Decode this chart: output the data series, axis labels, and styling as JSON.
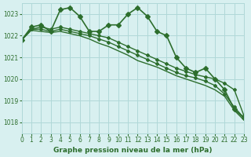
{
  "title": "Graphe pression niveau de la mer (hPa)",
  "bg_color": "#d8f0f0",
  "grid_color": "#b0d8d8",
  "line_color": "#2d6e2d",
  "xlim": [
    0,
    23
  ],
  "ylim": [
    1017.5,
    1023.5
  ],
  "yticks": [
    1018,
    1019,
    1020,
    1021,
    1022,
    1023
  ],
  "xticks": [
    0,
    1,
    2,
    3,
    4,
    5,
    6,
    7,
    8,
    9,
    10,
    11,
    12,
    13,
    14,
    15,
    16,
    17,
    18,
    19,
    20,
    21,
    22,
    23
  ],
  "series1": {
    "x": [
      0,
      1,
      2,
      3,
      4,
      5,
      6,
      7,
      8,
      9,
      10,
      11,
      12,
      13,
      14,
      15,
      16,
      17,
      18,
      19,
      20,
      21,
      22,
      23
    ],
    "y": [
      1021.8,
      1022.4,
      1022.5,
      1022.2,
      1023.2,
      1023.3,
      1022.9,
      1022.2,
      1022.2,
      1022.5,
      1022.5,
      1023.0,
      1023.3,
      1022.9,
      1022.2,
      1022.0,
      1021.0,
      1020.5,
      1020.3,
      1020.5,
      1020.0,
      1019.5,
      1018.6,
      1018.2
    ],
    "marker": "D",
    "markersize": 3,
    "linewidth": 1.2
  },
  "series2": {
    "x": [
      0,
      1,
      2,
      3,
      4,
      5,
      6,
      7,
      8,
      9,
      10,
      11,
      12,
      13,
      14,
      15,
      16,
      17,
      18,
      19,
      20,
      21,
      22,
      23
    ],
    "y": [
      1021.8,
      1022.3,
      1022.4,
      1022.3,
      1022.4,
      1022.3,
      1022.2,
      1022.1,
      1022.0,
      1021.9,
      1021.7,
      1021.5,
      1021.3,
      1021.1,
      1020.9,
      1020.7,
      1020.5,
      1020.35,
      1020.2,
      1020.1,
      1020.0,
      1019.8,
      1019.5,
      1018.3
    ],
    "marker": "D",
    "markersize": 2,
    "linewidth": 1.0
  },
  "series3": {
    "x": [
      0,
      1,
      2,
      3,
      4,
      5,
      6,
      7,
      8,
      9,
      10,
      11,
      12,
      13,
      14,
      15,
      16,
      17,
      18,
      19,
      20,
      21,
      22,
      23
    ],
    "y": [
      1021.8,
      1022.3,
      1022.3,
      1022.2,
      1022.3,
      1022.2,
      1022.1,
      1022.0,
      1021.85,
      1021.7,
      1021.5,
      1021.3,
      1021.1,
      1020.9,
      1020.7,
      1020.5,
      1020.3,
      1020.15,
      1020.05,
      1019.9,
      1019.7,
      1019.3,
      1018.7,
      1018.2
    ],
    "marker": "D",
    "markersize": 2,
    "linewidth": 1.0
  },
  "series4": {
    "x": [
      0,
      1,
      2,
      3,
      4,
      5,
      6,
      7,
      8,
      9,
      10,
      11,
      12,
      13,
      14,
      15,
      16,
      17,
      18,
      19,
      20,
      21,
      22,
      23
    ],
    "y": [
      1021.8,
      1022.25,
      1022.2,
      1022.15,
      1022.2,
      1022.1,
      1022.0,
      1021.85,
      1021.65,
      1021.5,
      1021.3,
      1021.1,
      1020.85,
      1020.7,
      1020.55,
      1020.35,
      1020.15,
      1020.0,
      1019.85,
      1019.7,
      1019.5,
      1019.2,
      1018.55,
      1018.1
    ],
    "marker": null,
    "markersize": 0,
    "linewidth": 1.0
  }
}
